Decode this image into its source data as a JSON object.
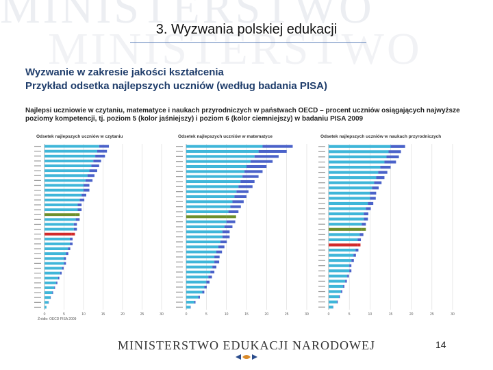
{
  "watermark": {
    "line1": "MINISTERSTWO",
    "line2": "MINISTERSTWO"
  },
  "slide": {
    "title": "3. Wyzwania polskiej edukacji",
    "heading1": "Wyzwanie w zakresie jakości kształcenia",
    "heading2": "Przykład odsetka najlepszych uczniów (według badania PISA)",
    "description": "Najlepsi uczniowie w czytaniu, matematyce i naukach przyrodniczych w państwach OECD – procent uczniów osiągających najwyższe poziomy kompetencji, tj. poziom 5 (kolor jaśniejszy) i poziom 6 (kolor ciemniejszy) w badaniu PISA 2009",
    "source": "Źródło: OECD PISA 2009",
    "page_number": "14"
  },
  "footer": {
    "ministry_name": "MINISTERSTWO EDUKACJI NARODOWEJ"
  },
  "colors": {
    "level5": "#3fb6d9",
    "level6": "#4a62c9",
    "poland": "#d22a2a",
    "oecd": "#6d8f2b"
  },
  "chart_data": [
    {
      "type": "bar",
      "title": "Odsetek najlepszych uczniów w czytaniu",
      "orientation": "horizontal",
      "xlim": [
        0,
        30
      ],
      "x_ticks": [
        "0",
        "5",
        "10",
        "15",
        "20",
        "25",
        "30"
      ],
      "rows": [
        {
          "level5": 14.0,
          "level6": 2.5
        },
        {
          "level5": 13.5,
          "level6": 2.5
        },
        {
          "level5": 13.0,
          "level6": 2.5
        },
        {
          "level5": 12.5,
          "level6": 2.0
        },
        {
          "level5": 12.0,
          "level6": 2.0
        },
        {
          "level5": 11.5,
          "level6": 2.0
        },
        {
          "level5": 11.0,
          "level6": 1.8
        },
        {
          "level5": 10.5,
          "level6": 1.8
        },
        {
          "level5": 10.0,
          "level6": 1.5
        },
        {
          "level5": 10.0,
          "level6": 1.5
        },
        {
          "level5": 9.5,
          "level6": 1.2
        },
        {
          "level5": 9.0,
          "level6": 1.2
        },
        {
          "level5": 8.5,
          "level6": 1.0
        },
        {
          "level5": 8.5,
          "level6": 1.0
        },
        {
          "level5": 8.0,
          "level6": 1.0,
          "highlight": "oecd"
        },
        {
          "level5": 8.0,
          "level6": 1.0
        },
        {
          "level5": 7.5,
          "level6": 0.8
        },
        {
          "level5": 7.5,
          "level6": 0.8
        },
        {
          "level5": 7.0,
          "level6": 0.8,
          "highlight": "poland"
        },
        {
          "level5": 6.5,
          "level6": 0.7
        },
        {
          "level5": 6.5,
          "level6": 0.7
        },
        {
          "level5": 6.0,
          "level6": 0.6
        },
        {
          "level5": 5.5,
          "level6": 0.6
        },
        {
          "level5": 5.0,
          "level6": 0.5
        },
        {
          "level5": 5.0,
          "level6": 0.5
        },
        {
          "level5": 4.5,
          "level6": 0.4
        },
        {
          "level5": 4.0,
          "level6": 0.4
        },
        {
          "level5": 3.5,
          "level6": 0.3
        },
        {
          "level5": 3.0,
          "level6": 0.3
        },
        {
          "level5": 2.5,
          "level6": 0.2
        },
        {
          "level5": 2.0,
          "level6": 0.2
        },
        {
          "level5": 1.5,
          "level6": 0.1
        },
        {
          "level5": 1.0,
          "level6": 0.1
        },
        {
          "level5": 0.5,
          "level6": 0.0
        }
      ]
    },
    {
      "type": "bar",
      "title": "Odsetek najlepszych uczniów w matematyce",
      "orientation": "horizontal",
      "xlim": [
        0,
        30
      ],
      "x_ticks": [
        "0",
        "5",
        "10",
        "15",
        "20",
        "25",
        "30"
      ],
      "rows": [
        {
          "level5": 19.0,
          "level6": 7.5
        },
        {
          "level5": 18.0,
          "level6": 7.0
        },
        {
          "level5": 17.0,
          "level6": 6.0
        },
        {
          "level5": 16.0,
          "level6": 5.5
        },
        {
          "level5": 15.0,
          "level6": 5.0
        },
        {
          "level5": 14.5,
          "level6": 4.5
        },
        {
          "level5": 14.0,
          "level6": 4.0
        },
        {
          "level5": 13.5,
          "level6": 3.5
        },
        {
          "level5": 13.0,
          "level6": 3.5
        },
        {
          "level5": 12.5,
          "level6": 3.0
        },
        {
          "level5": 12.0,
          "level6": 3.0
        },
        {
          "level5": 11.5,
          "level6": 2.8
        },
        {
          "level5": 11.0,
          "level6": 2.6
        },
        {
          "level5": 10.5,
          "level6": 2.5
        },
        {
          "level5": 10.0,
          "level6": 2.4,
          "highlight": "oecd"
        },
        {
          "level5": 10.0,
          "level6": 2.2
        },
        {
          "level5": 9.5,
          "level6": 2.0
        },
        {
          "level5": 9.0,
          "level6": 1.8
        },
        {
          "level5": 9.0,
          "level6": 1.8
        },
        {
          "level5": 8.5,
          "level6": 1.6
        },
        {
          "level5": 8.0,
          "level6": 1.5
        },
        {
          "level5": 7.5,
          "level6": 1.4
        },
        {
          "level5": 7.0,
          "level6": 1.3
        },
        {
          "level5": 7.0,
          "level6": 1.2
        },
        {
          "level5": 6.5,
          "level6": 1.0
        },
        {
          "level5": 6.0,
          "level6": 1.0
        },
        {
          "level5": 5.5,
          "level6": 0.9
        },
        {
          "level5": 5.0,
          "level6": 0.8
        },
        {
          "level5": 4.5,
          "level6": 0.6
        },
        {
          "level5": 4.0,
          "level6": 0.5
        },
        {
          "level5": 3.0,
          "level6": 0.4
        },
        {
          "level5": 2.0,
          "level6": 0.3
        },
        {
          "level5": 1.0,
          "level6": 0.1
        }
      ]
    },
    {
      "type": "bar",
      "title": "Odsetek najlepszych uczniów w naukach przyrodniczych",
      "orientation": "horizontal",
      "xlim": [
        0,
        30
      ],
      "x_ticks": [
        "0",
        "5",
        "10",
        "15",
        "20",
        "25",
        "30"
      ],
      "rows": [
        {
          "level5": 15.0,
          "level6": 3.5
        },
        {
          "level5": 14.5,
          "level6": 3.0
        },
        {
          "level5": 14.0,
          "level6": 3.0
        },
        {
          "level5": 13.5,
          "level6": 2.8
        },
        {
          "level5": 12.5,
          "level6": 2.5
        },
        {
          "level5": 12.0,
          "level6": 2.2
        },
        {
          "level5": 11.5,
          "level6": 2.0
        },
        {
          "level5": 11.0,
          "level6": 1.8
        },
        {
          "level5": 10.5,
          "level6": 1.6
        },
        {
          "level5": 10.0,
          "level6": 1.5
        },
        {
          "level5": 10.0,
          "level6": 1.4
        },
        {
          "level5": 9.5,
          "level6": 1.3
        },
        {
          "level5": 9.0,
          "level6": 1.2
        },
        {
          "level5": 8.5,
          "level6": 1.1
        },
        {
          "level5": 8.5,
          "level6": 1.0
        },
        {
          "level5": 8.0,
          "level6": 1.0
        },
        {
          "level5": 8.0,
          "level6": 1.0,
          "highlight": "oecd"
        },
        {
          "level5": 7.5,
          "level6": 0.9
        },
        {
          "level5": 7.0,
          "level6": 0.8
        },
        {
          "level5": 7.0,
          "level6": 0.7,
          "highlight": "poland"
        },
        {
          "level5": 6.5,
          "level6": 0.7
        },
        {
          "level5": 6.0,
          "level6": 0.6
        },
        {
          "level5": 5.5,
          "level6": 0.6
        },
        {
          "level5": 5.0,
          "level6": 0.5
        },
        {
          "level5": 5.0,
          "level6": 0.5
        },
        {
          "level5": 4.5,
          "level6": 0.4
        },
        {
          "level5": 4.0,
          "level6": 0.4
        },
        {
          "level5": 3.5,
          "level6": 0.3
        },
        {
          "level5": 3.0,
          "level6": 0.3
        },
        {
          "level5": 2.5,
          "level6": 0.2
        },
        {
          "level5": 2.0,
          "level6": 0.2
        },
        {
          "level5": 1.0,
          "level6": 0.1
        }
      ]
    }
  ]
}
